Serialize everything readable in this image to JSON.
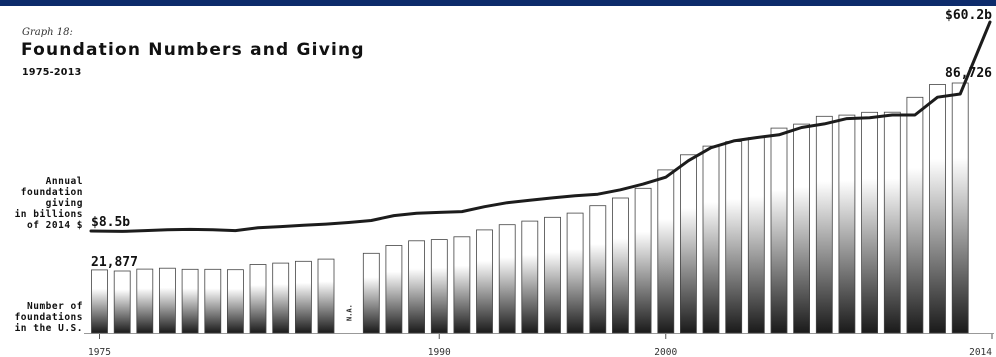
{
  "header": {
    "graph_label": "Graph 18:",
    "accent_color": "#0d2b6b"
  },
  "giving_label_lines": [
    "Annual",
    "foundation",
    "giving",
    "in billions",
    "of 2014 $"
  ],
  "count_label_lines": [
    "Number of",
    "foundations",
    "in the U.S."
  ],
  "chart_data": {
    "type": "bar",
    "title": "Foundation Numbers and Giving",
    "subtitle": "1975-2013",
    "x_ticks": [
      "1975",
      "1990",
      "2000",
      "2014"
    ],
    "x_tick_years": [
      1975,
      1990,
      2000,
      2014
    ],
    "gap_label": "N.A.",
    "line_color": "#1c1c1c",
    "bar_fill_top": "#ffffff",
    "bar_fill_bottom": "#1a1a1a",
    "series": [
      {
        "type": "bar",
        "years": [
          1975,
          1976,
          1977,
          1978,
          1979,
          1980,
          1981,
          1982,
          1983,
          1984,
          1985,
          1986,
          1987,
          1988,
          1989,
          1990,
          1991,
          1992,
          1993,
          1994,
          1995,
          1996,
          1997,
          1998,
          1999,
          2000,
          2001,
          2002,
          2003,
          2004,
          2005,
          2006,
          2007,
          2008,
          2009,
          2010,
          2011,
          2012,
          2013
        ],
        "values": [
          21877,
          21505,
          22152,
          22484,
          22088,
          22088,
          21967,
          23770,
          24261,
          24859,
          25639,
          null,
          27661,
          30338,
          31990,
          32401,
          33356,
          35765,
          37571,
          38807,
          40140,
          41588,
          44146,
          46832,
          50201,
          56582,
          61810,
          64843,
          66398,
          67736,
          71097,
          72477,
          75187,
          75595,
          76545,
          76610,
          81777,
          86192,
          86726
        ],
        "value_labels": {
          "1975": "21,877",
          "2013": "86,726"
        }
      },
      {
        "type": "line",
        "years": [
          1975,
          1976,
          1977,
          1978,
          1979,
          1980,
          1981,
          1982,
          1983,
          1984,
          1985,
          1986,
          1987,
          1988,
          1989,
          1990,
          1991,
          1992,
          1993,
          1994,
          1995,
          1996,
          1997,
          1998,
          1999,
          2000,
          2001,
          2002,
          2003,
          2004,
          2005,
          2006,
          2007,
          2008,
          2009,
          2010,
          2011,
          2012,
          2013,
          2014
        ],
        "values": [
          8.5,
          8.4,
          8.6,
          8.8,
          8.9,
          8.8,
          8.6,
          9.3,
          9.6,
          9.9,
          10.2,
          10.6,
          11.1,
          12.3,
          12.9,
          13.1,
          13.3,
          14.5,
          15.5,
          16.1,
          16.7,
          17.2,
          17.6,
          18.7,
          20.1,
          21.8,
          25.9,
          29.1,
          30.8,
          31.6,
          32.3,
          34.1,
          35.0,
          36.3,
          36.5,
          37.2,
          37.2,
          41.6,
          42.4,
          60.2
        ],
        "value_labels": {
          "1975": "$8.5b",
          "2014": "$60.2b"
        }
      }
    ],
    "bar_ylim": [
      0,
      90000
    ],
    "line_ylim": [
      0,
      60.2
    ]
  }
}
